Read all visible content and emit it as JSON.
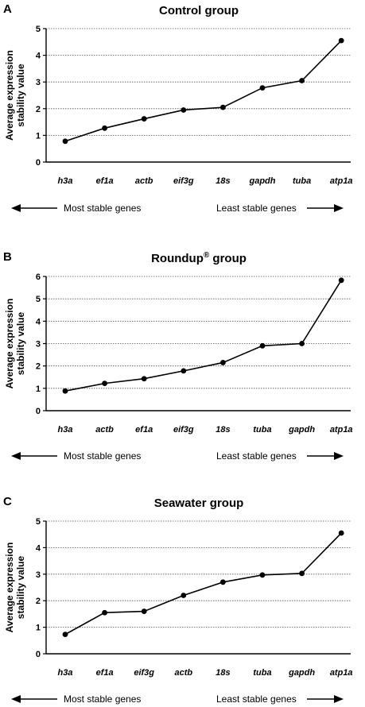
{
  "panels": [
    {
      "letter": "A",
      "chart_data": {
        "type": "line",
        "title": "Control group",
        "title_sup": "",
        "ylabel_line1": "Average expression",
        "ylabel_line2": "stability value",
        "categories": [
          "h3a",
          "ef1a",
          "actb",
          "eif3g",
          "18s",
          "gapdh",
          "tuba",
          "atp1a"
        ],
        "values": [
          0.78,
          1.27,
          1.62,
          1.95,
          2.05,
          2.78,
          3.05,
          4.55
        ],
        "ylim": [
          0,
          5
        ],
        "yticks": [
          "0",
          "1",
          "2",
          "3",
          "4",
          "5"
        ],
        "grid": "horizontal-dotted",
        "arrow_left_label": "Most stable genes",
        "arrow_right_label": "Least stable genes"
      }
    },
    {
      "letter": "B",
      "chart_data": {
        "type": "line",
        "title": "Roundup",
        "title_sup": "®",
        "title_suffix": " group",
        "ylabel_line1": "Average expression",
        "ylabel_line2": "stability value",
        "categories": [
          "h3a",
          "actb",
          "ef1a",
          "eif3g",
          "18s",
          "tuba",
          "gapdh",
          "atp1a"
        ],
        "values": [
          0.88,
          1.22,
          1.43,
          1.78,
          2.15,
          2.9,
          3.0,
          5.83
        ],
        "ylim": [
          0,
          6
        ],
        "yticks": [
          "0",
          "1",
          "2",
          "3",
          "4",
          "5",
          "6"
        ],
        "grid": "horizontal-dotted",
        "arrow_left_label": "Most stable genes",
        "arrow_right_label": "Least stable genes"
      }
    },
    {
      "letter": "C",
      "chart_data": {
        "type": "line",
        "title": "Seawater group",
        "title_sup": "",
        "ylabel_line1": "Average expression",
        "ylabel_line2": "stability value",
        "categories": [
          "h3a",
          "ef1a",
          "eif3g",
          "actb",
          "18s",
          "tuba",
          "gapdh",
          "atp1a"
        ],
        "values": [
          0.73,
          1.55,
          1.6,
          2.2,
          2.7,
          2.97,
          3.03,
          4.55
        ],
        "ylim": [
          0,
          5
        ],
        "yticks": [
          "0",
          "1",
          "2",
          "3",
          "4",
          "5"
        ],
        "grid": "horizontal-dotted",
        "arrow_left_label": "Most stable genes",
        "arrow_right_label": "Least stable genes"
      }
    }
  ]
}
